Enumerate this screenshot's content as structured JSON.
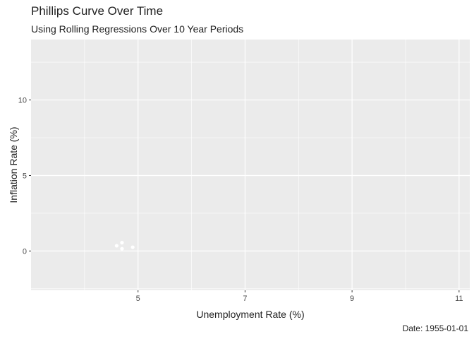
{
  "chart_data": {
    "type": "scatter",
    "title": "Phillips Curve Over Time",
    "subtitle": "Using Rolling Regressions Over 10 Year Periods",
    "caption": "Date: 1955-01-01",
    "xlabel": "Unemployment Rate (%)",
    "ylabel": "Inflation Rate (%)",
    "xlim": [
      3.0,
      11.2
    ],
    "ylim": [
      -2.6,
      14.0
    ],
    "x_ticks": [
      5,
      7,
      9,
      11
    ],
    "x_minor": [
      4,
      6,
      8,
      10
    ],
    "y_ticks": [
      0,
      5,
      10
    ],
    "y_minor": [
      -2.5,
      2.5,
      7.5,
      12.5
    ],
    "grid": true,
    "point_color": "#ffffff",
    "panel_color": "#ebebeb",
    "grid_color": "#ffffff",
    "points": [
      {
        "x": 4.6,
        "y": 0.35
      },
      {
        "x": 4.7,
        "y": 0.55
      },
      {
        "x": 4.7,
        "y": 0.15
      },
      {
        "x": 4.9,
        "y": 0.25
      }
    ]
  }
}
